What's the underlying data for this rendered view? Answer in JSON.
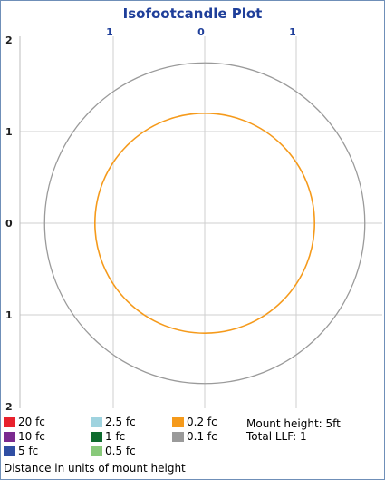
{
  "chart_data": {
    "type": "contour",
    "title": "Isofootcandle Plot",
    "xlim": [
      -2,
      2
    ],
    "ylim": [
      -2,
      2
    ],
    "top_tick_labels": [
      {
        "x": -1,
        "label": "1"
      },
      {
        "x": 0,
        "label": "0"
      },
      {
        "x": 1,
        "label": "1"
      }
    ],
    "left_tick_labels": [
      {
        "y": 2,
        "label": "2"
      },
      {
        "y": 1,
        "label": "1"
      },
      {
        "y": 0,
        "label": "0"
      },
      {
        "y": -1,
        "label": "1"
      },
      {
        "y": -2,
        "label": "2"
      }
    ],
    "grid": true,
    "series": [
      {
        "name": "0.2 fc",
        "color": "#f59a1b",
        "radius": 1.2
      },
      {
        "name": "0.1 fc",
        "color": "#9a9a9a",
        "radius": 1.75
      }
    ]
  },
  "legend": {
    "items": [
      {
        "label": "20 fc",
        "color": "#e8212d"
      },
      {
        "label": "10 fc",
        "color": "#7b2a8f"
      },
      {
        "label": "5 fc",
        "color": "#2f4ea3"
      },
      {
        "label": "2.5 fc",
        "color": "#9fd3df"
      },
      {
        "label": "1 fc",
        "color": "#0e6b2e"
      },
      {
        "label": "0.5 fc",
        "color": "#88c97a"
      },
      {
        "label": "0.2 fc",
        "color": "#f59a1b"
      },
      {
        "label": "0.1 fc",
        "color": "#9a9a9a"
      }
    ]
  },
  "info": {
    "mount_height": "Mount height: 5ft",
    "total_llf": "Total LLF: 1"
  },
  "footer": "Distance in units of mount height",
  "colors": {
    "title": "#1f3f9a",
    "tick_top": "#1f3f9a",
    "grid": "#cfcfcf",
    "frame": "#6f8fb8"
  }
}
